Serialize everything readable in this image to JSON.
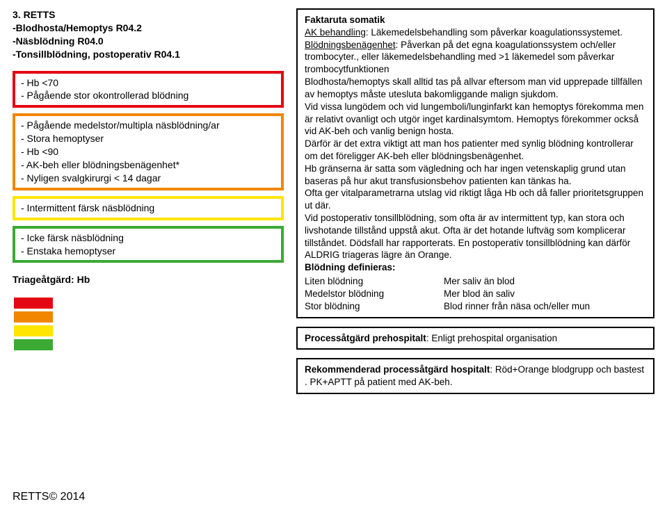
{
  "header": {
    "num": "3.",
    "title": "RETTS",
    "lines": [
      "-Blodhosta/Hemoptys R04.2",
      "-Näsblödning R04.0",
      "-Tonsillblödning, postoperativ R04.1"
    ]
  },
  "triage": {
    "colors": {
      "red": "#e30613",
      "orange": "#f18700",
      "yellow": "#ffe500",
      "green": "#3aaa35"
    },
    "boxes": [
      {
        "colorKey": "red",
        "lines": [
          "- Hb <70",
          "- Pågående stor okontrollerad blödning"
        ]
      },
      {
        "colorKey": "orange",
        "lines": [
          "- Pågående medelstor/multipla näsblödning/ar",
          "- Stora hemoptyser",
          "- Hb <90",
          "- AK-beh eller blödningsbenägenhet*",
          "- Nyligen svalgkirurgi < 14 dagar"
        ]
      },
      {
        "colorKey": "yellow",
        "lines": [
          "- Intermittent färsk näsblödning"
        ]
      },
      {
        "colorKey": "green",
        "lines": [
          "- Icke färsk näsblödning",
          "- Enstaka hemoptyser"
        ]
      }
    ],
    "labelTitle": "Triageåtgärd: Hb",
    "swatches": [
      "red",
      "orange",
      "yellow",
      "green"
    ]
  },
  "footer": {
    "copyright": "RETTS© 2014"
  },
  "fakta": {
    "title": "Faktaruta somatik",
    "ak_label": "AK behandling",
    "ak_text": ": Läkemedelsbehandling som påverkar koagulationssystemet.",
    "blod_label": "Blödningsbenägenhet",
    "blod_text": ": Påverkan på det egna koagulationssystem och/eller trombocyter., eller läkemedelsbehandling med >1 läkemedel som påverkar trombocytfunktionen",
    "body1": "Blodhosta/hemoptys skall alltid tas på allvar eftersom man vid upprepade tillfällen av hemoptys måste utesluta bakomliggande malign sjukdom.",
    "body2": "Vid vissa lungödem och vid lungemboli/lunginfarkt kan hemoptys förekomma men är relativt ovanligt och utgör inget kardinalsymtom. Hemoptys förekommer också vid AK-beh och vanlig benign hosta.",
    "body3": "Därför är det extra viktigt att man hos patienter med synlig blödning kontrollerar om det föreligger AK-beh eller blödningsbenägenhet.",
    "body4": "Hb gränserna är satta som vägledning och har ingen vetenskaplig grund utan baseras på hur akut transfusionsbehov patienten kan tänkas ha.",
    "body5": "Ofta ger vitalparametrarna utslag vid riktigt låga Hb och då faller prioritetsgruppen ut där.",
    "body6": "Vid postoperativ tonsillblödning, som ofta är av intermittent typ, kan stora och livshotande tillstånd uppstå akut. Ofta är det hotande luftväg som komplicerar tillståndet. Dödsfall har rapporterats. En postoperativ tonsillblödning kan därför ALDRIG triageras lägre än Orange.",
    "def_title": "Blödning definieras:",
    "defs": [
      {
        "c1": "Liten blödning",
        "c2": "Mer saliv än blod"
      },
      {
        "c1": "Medelstor blödning",
        "c2": "Mer blod än saliv"
      },
      {
        "c1": "Stor blödning",
        "c2": "Blod rinner från näsa och/eller mun"
      }
    ]
  },
  "process_prehospital": {
    "label": "Processåtgärd prehospitalt",
    "text": ": Enligt prehospital organisation"
  },
  "process_hospitalt": {
    "label": "Rekommenderad processåtgärd hospitalt",
    "text": ": Röd+Orange blodgrupp och bastest . PK+APTT på patient med AK-beh."
  }
}
